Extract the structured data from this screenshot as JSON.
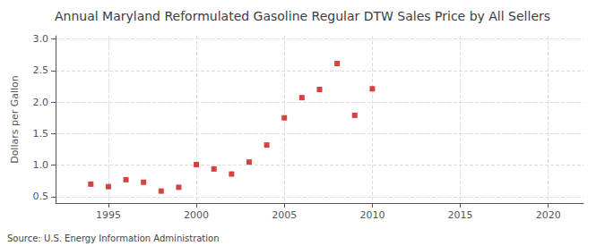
{
  "chart_data": {
    "type": "scatter",
    "title": "Annual Maryland Reformulated Gasoline Regular DTW Sales Price by All Sellers",
    "ylabel": "Dollars per Gallon",
    "annotations": [
      "Source: U.S. Energy Information Administration"
    ],
    "x": [
      1994,
      1995,
      1996,
      1997,
      1998,
      1999,
      2000,
      2001,
      2002,
      2003,
      2004,
      2005,
      2006,
      2007,
      2008,
      2009,
      2010
    ],
    "values": [
      0.7,
      0.66,
      0.77,
      0.73,
      0.59,
      0.65,
      1.01,
      0.94,
      0.86,
      1.05,
      1.32,
      1.75,
      2.07,
      2.2,
      2.61,
      1.79,
      2.21
    ],
    "color": "#cc1111",
    "marker": "square",
    "xlim": [
      1992,
      2022
    ],
    "xticks": [
      1995,
      2000,
      2005,
      2010,
      2015,
      2020
    ],
    "ylim": [
      0.4,
      3.05
    ],
    "yticks": [
      0.5,
      {
        "value": 1.0,
        "label": "1.0"
      },
      1.5,
      {
        "value": 2.0,
        "label": "2.0"
      },
      2.5,
      {
        "value": 3.0,
        "label": "3.0"
      }
    ],
    "grid": true
  }
}
